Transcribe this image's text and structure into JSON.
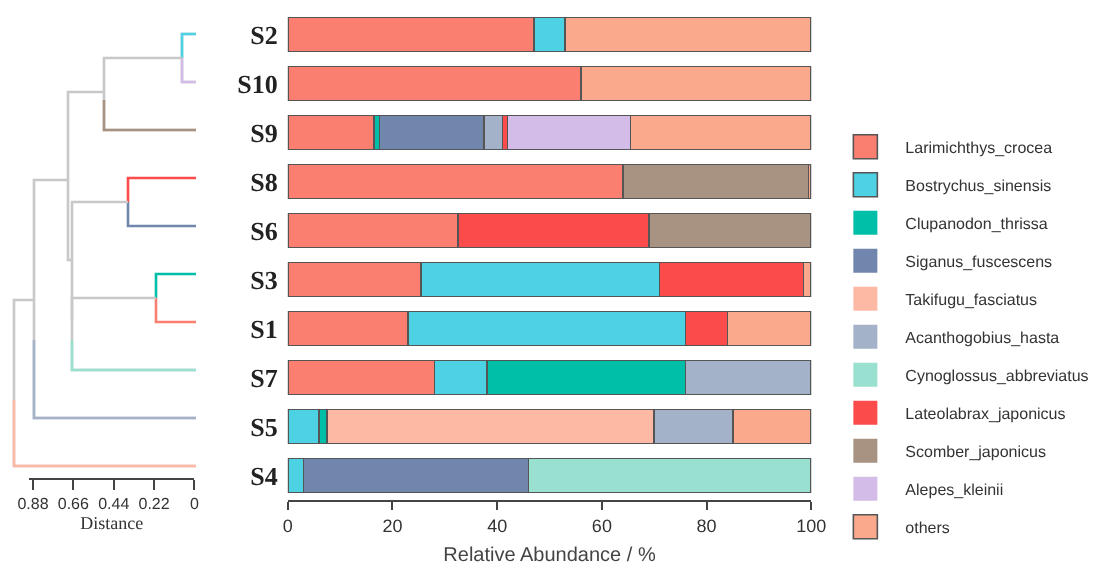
{
  "chart_data": {
    "type": "bar",
    "orientation": "horizontal",
    "stacked": true,
    "xlabel": "Relative Abundance / %",
    "x2label": "Distance",
    "categories": [
      "S2",
      "S10",
      "S9",
      "S8",
      "S6",
      "S3",
      "S1",
      "S7",
      "S5",
      "S4"
    ],
    "xlim": [
      0,
      100
    ],
    "xticks": [
      0,
      20,
      40,
      60,
      80,
      100
    ],
    "x2lim": [
      0.9,
      0
    ],
    "x2ticks": [
      0.88,
      0.66,
      0.44,
      0.22,
      0
    ],
    "grid": false,
    "legend": "right",
    "series": [
      {
        "name": "Larimichthys_crocea",
        "color": "#fa7f70",
        "values": [
          47,
          56,
          16.5,
          64,
          32.5,
          25.5,
          23,
          28,
          0,
          0
        ]
      },
      {
        "name": "Bostrychus_sinensis",
        "color": "#4dd2e3",
        "values": [
          6,
          0,
          0,
          0,
          0,
          45.5,
          53,
          10,
          6,
          3
        ]
      },
      {
        "name": "Clupanodon_thrissa",
        "color": "#00bfa8",
        "values": [
          0,
          0,
          1,
          0,
          0,
          0,
          0,
          38,
          1.5,
          0
        ]
      },
      {
        "name": "Siganus_fuscescens",
        "color": "#7086ac",
        "values": [
          0,
          0,
          20,
          0,
          0,
          0,
          0,
          0,
          0,
          43
        ]
      },
      {
        "name": "Takifugu_fasciatus",
        "color": "#fdb9a4",
        "values": [
          0,
          0,
          0,
          0,
          0,
          0,
          0,
          0,
          62.5,
          0
        ]
      },
      {
        "name": "Acanthogobius_hasta",
        "color": "#a3b1c9",
        "values": [
          0,
          0,
          3.5,
          0,
          0,
          0,
          0,
          24,
          15,
          0
        ]
      },
      {
        "name": "Cynoglossus_abbreviatus",
        "color": "#99e0d0",
        "values": [
          0,
          0,
          0,
          0,
          0,
          0,
          0,
          0,
          0,
          54
        ]
      },
      {
        "name": "Lateolabrax_japonicus",
        "color": "#fc4b4b",
        "values": [
          0,
          0,
          1,
          0,
          36.5,
          27.5,
          8,
          0,
          0,
          0
        ]
      },
      {
        "name": "Scomber_japonicus",
        "color": "#a89382",
        "values": [
          0,
          0,
          0,
          35.5,
          31,
          0,
          0,
          0,
          0,
          0
        ]
      },
      {
        "name": "Alepes_kleinii",
        "color": "#d4bce8",
        "values": [
          0,
          0,
          23.5,
          0,
          0,
          0,
          0,
          0,
          0,
          0
        ]
      },
      {
        "name": "others",
        "color": "#fba98c",
        "values": [
          47,
          44,
          34.5,
          0.5,
          0,
          1.5,
          16,
          0,
          15,
          0
        ]
      }
    ]
  }
}
